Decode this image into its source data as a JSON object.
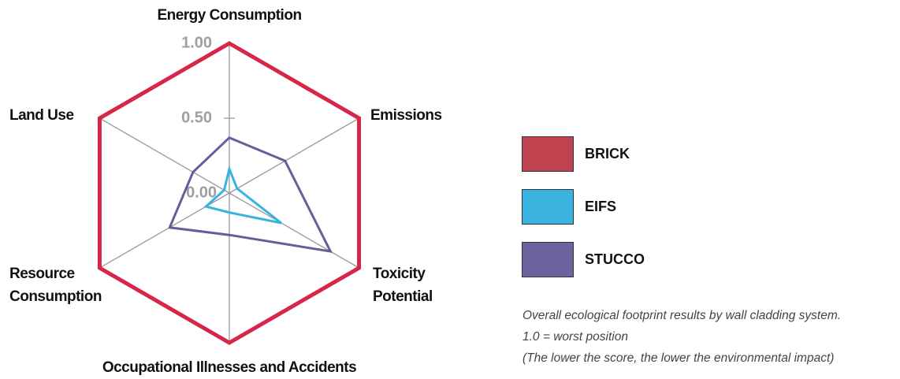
{
  "chart_data": {
    "type": "radar",
    "categories": [
      "Energy Consumption",
      "Emissions",
      "Toxicity Potential",
      "Occupational Illnesses and Accidents",
      "Resource Consumption",
      "Land Use"
    ],
    "rlim": [
      0,
      1
    ],
    "rticks": [
      {
        "value": 0,
        "label": "0.00"
      },
      {
        "value": 0.5,
        "label": "0.50"
      },
      {
        "value": 1,
        "label": "1.00"
      }
    ],
    "series": [
      {
        "name": "BRICK",
        "color": "#d6264a",
        "swatch": "#c0434f",
        "values": [
          1,
          1,
          1,
          1,
          1,
          1
        ]
      },
      {
        "name": "EIFS",
        "color": "#36b4df",
        "swatch": "#3bb3e0",
        "values": [
          0.16,
          0.06,
          0.4,
          0.13,
          0.18,
          0.04
        ]
      },
      {
        "name": "STUCCO",
        "color": "#6a5b9a",
        "swatch": "#6b64a0",
        "values": [
          0.37,
          0.43,
          0.78,
          0.28,
          0.46,
          0.28
        ]
      }
    ],
    "notes": [
      "Overall ecological footprint results by wall cladding system.",
      "1.0 = worst position",
      "(The lower the score, the lower the environmental impact)"
    ]
  }
}
